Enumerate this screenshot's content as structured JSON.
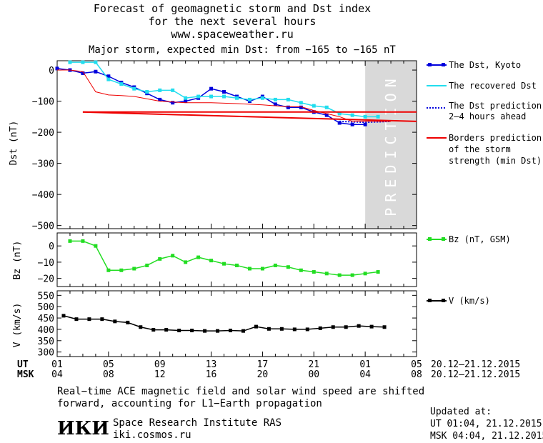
{
  "header": {
    "title_line1": "Forecast of geomagnetic storm and Dst index",
    "title_line2": "for the next several hours",
    "url": "www.spaceweather.ru"
  },
  "storm": {
    "color": "#ff0000",
    "text": "Major storm, expected min Dst: from −165 to −165 nT"
  },
  "prediction_label": "PREDICTION",
  "time_axis": {
    "ut_label": "UT",
    "msk_label": "MSK",
    "ut_ticks": [
      "01",
      "05",
      "09",
      "13",
      "17",
      "21",
      "01",
      "05"
    ],
    "msk_ticks": [
      "04",
      "08",
      "12",
      "16",
      "20",
      "00",
      "04",
      "08"
    ],
    "ut_range": "20.12–21.12.2015",
    "msk_range": "20.12–21.12.2015"
  },
  "legend": {
    "dst_kyoto": "The Dst, Kyoto",
    "recovered_dst": "The recovered Dst",
    "dst_prediction_line1": "The Dst prediction",
    "dst_prediction_line2": "2–4 hours ahead",
    "borders_line1": "Borders prediction",
    "borders_line2": "of the storm",
    "borders_line3": "strength (min Dst)",
    "bz": "Bz (nT, GSM)",
    "v": "V (km/s)"
  },
  "colors": {
    "dst_kyoto": "#0000dd",
    "recovered_dst": "#22ddee",
    "dst_prediction": "#0000dd",
    "borders": "#ee0000",
    "bz": "#22dd22",
    "v": "#000000",
    "prediction_band": "#d9d9d9"
  },
  "footer": {
    "note_line1": "Real−time ACE magnetic field and solar wind speed are shifted",
    "note_line2": "forward, accounting for L1−Earth propagation",
    "logo_text": "ИКИ",
    "org_name": "Space Research Institute RAS",
    "org_url": "iki.cosmos.ru",
    "updated_label": "Updated at:",
    "updated_ut": "UT  01:04, 21.12.2015",
    "updated_msk": "MSK 04:04, 21.12.2015"
  },
  "chart_data": [
    {
      "type": "line",
      "ylabel": "Dst (nT)",
      "ylim": [
        -510,
        30
      ],
      "yticks": [
        0,
        -100,
        -200,
        -300,
        -400,
        -500
      ],
      "ytick_labels": [
        "0",
        "−100",
        "−200",
        "−300",
        "−400",
        "−500"
      ],
      "xlim_hours_ut": [
        0,
        28
      ],
      "prediction_region_hours": [
        24,
        28
      ],
      "series": [
        {
          "name": "The Dst, Kyoto",
          "x": [
            0,
            1,
            2,
            3,
            4,
            5,
            6,
            7,
            8,
            9,
            10,
            11,
            12,
            13,
            14,
            15,
            16,
            17,
            18,
            19,
            20,
            21,
            22,
            23,
            24
          ],
          "values": [
            5,
            0,
            -10,
            -5,
            -20,
            -40,
            -55,
            -75,
            -95,
            -105,
            -100,
            -90,
            -60,
            -70,
            -85,
            -100,
            -85,
            -110,
            -120,
            -120,
            -135,
            -145,
            -170,
            -175,
            -175
          ]
        },
        {
          "name": "The recovered Dst",
          "x": [
            1,
            2,
            3,
            4,
            5,
            6,
            7,
            8,
            9,
            10,
            11,
            12,
            13,
            14,
            15,
            16,
            17,
            18,
            19,
            20,
            21,
            22,
            23,
            24,
            25
          ],
          "values": [
            25,
            25,
            25,
            -30,
            -45,
            -60,
            -70,
            -65,
            -65,
            -90,
            -85,
            -85,
            -85,
            -90,
            -95,
            -90,
            -95,
            -95,
            -105,
            -115,
            -120,
            -140,
            -145,
            -150,
            -150
          ]
        },
        {
          "name": "The Dst prediction 2–4 hours ahead",
          "x": [
            22,
            24,
            26
          ],
          "values": [
            -165,
            -168,
            -165
          ]
        },
        {
          "name": "Borders prediction of the storm strength (min Dst)",
          "x": [
            2,
            28
          ],
          "values": [
            -135,
            -135
          ],
          "upper": [
            -135,
            -165
          ]
        },
        {
          "name": "Dst nowcast (thin red)",
          "x": [
            0,
            1,
            2,
            3,
            4,
            5,
            6,
            8,
            10,
            12,
            14,
            16,
            18,
            19,
            20,
            21,
            22,
            23,
            24,
            25,
            26
          ],
          "values": [
            0,
            0,
            -5,
            -70,
            -80,
            -82,
            -85,
            -100,
            -105,
            -105,
            -108,
            -112,
            -118,
            -118,
            -130,
            -140,
            -150,
            -165,
            -165,
            -165,
            -165
          ]
        }
      ]
    },
    {
      "type": "line",
      "ylabel": "Bz (nT)",
      "ylim": [
        -25,
        8
      ],
      "yticks": [
        0,
        -10,
        -20
      ],
      "ytick_labels": [
        "0",
        "−10",
        "−20"
      ],
      "series": [
        {
          "name": "Bz (nT, GSM)",
          "x": [
            1,
            2,
            3,
            4,
            5,
            6,
            7,
            8,
            9,
            10,
            11,
            12,
            13,
            14,
            15,
            16,
            17,
            18,
            19,
            20,
            21,
            22,
            23,
            24,
            25
          ],
          "values": [
            3,
            3,
            0,
            -15,
            -15,
            -14,
            -12,
            -8,
            -6,
            -10,
            -7,
            -9,
            -11,
            -12,
            -14,
            -14,
            -12,
            -13,
            -15,
            -16,
            -17,
            -18,
            -18,
            -17,
            -16
          ]
        }
      ]
    },
    {
      "type": "line",
      "ylabel": "V (km/s)",
      "ylim": [
        280,
        570
      ],
      "yticks": [
        550,
        500,
        450,
        400,
        350,
        300
      ],
      "ytick_labels": [
        "550",
        "500",
        "450",
        "400",
        "350",
        "300"
      ],
      "series": [
        {
          "name": "V (km/s)",
          "x": [
            0.5,
            1.5,
            2.5,
            3.5,
            4.5,
            5.5,
            6.5,
            7.5,
            8.5,
            9.5,
            10.5,
            11.5,
            12.5,
            13.5,
            14.5,
            15.5,
            16.5,
            17.5,
            18.5,
            19.5,
            20.5,
            21.5,
            22.5,
            23.5,
            24.5,
            25.5
          ],
          "values": [
            460,
            445,
            445,
            445,
            435,
            430,
            410,
            398,
            398,
            395,
            395,
            393,
            393,
            395,
            393,
            412,
            402,
            402,
            400,
            400,
            405,
            410,
            410,
            415,
            412,
            410
          ]
        }
      ]
    }
  ]
}
